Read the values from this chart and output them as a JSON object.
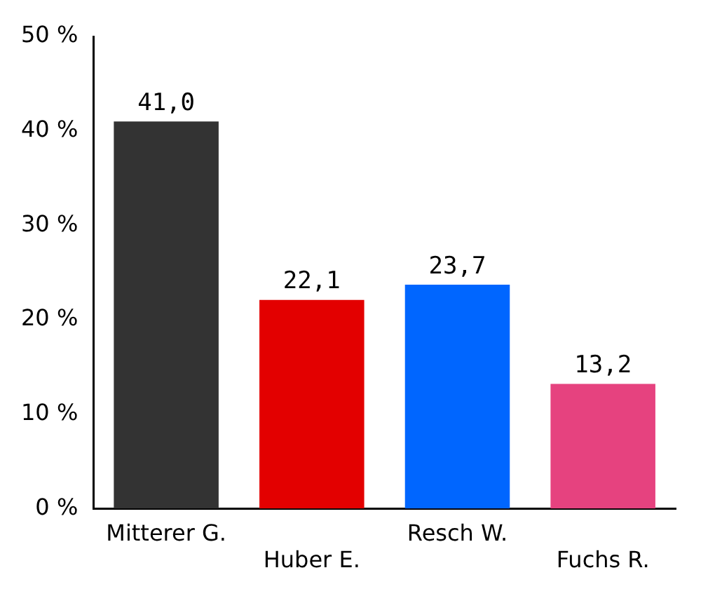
{
  "chart_data": {
    "type": "bar",
    "categories": [
      "Mitterer G.",
      "Huber E.",
      "Resch W.",
      "Fuchs R."
    ],
    "values": [
      41.0,
      22.1,
      23.7,
      13.2
    ],
    "colors": [
      "#333333",
      "#e30000",
      "#0066ff",
      "#e6427f"
    ],
    "value_labels": [
      "41,0",
      "22,1",
      "23,7",
      "13,2"
    ],
    "ylim": [
      0,
      50
    ],
    "yticks": [
      {
        "value": 0,
        "label": "0 %"
      },
      {
        "value": 10,
        "label": "10 %"
      },
      {
        "value": 20,
        "label": "20 %"
      },
      {
        "value": 30,
        "label": "30 %"
      },
      {
        "value": 40,
        "label": "40 %"
      },
      {
        "value": 50,
        "label": "50 %"
      }
    ],
    "grid": false,
    "legend": false
  }
}
